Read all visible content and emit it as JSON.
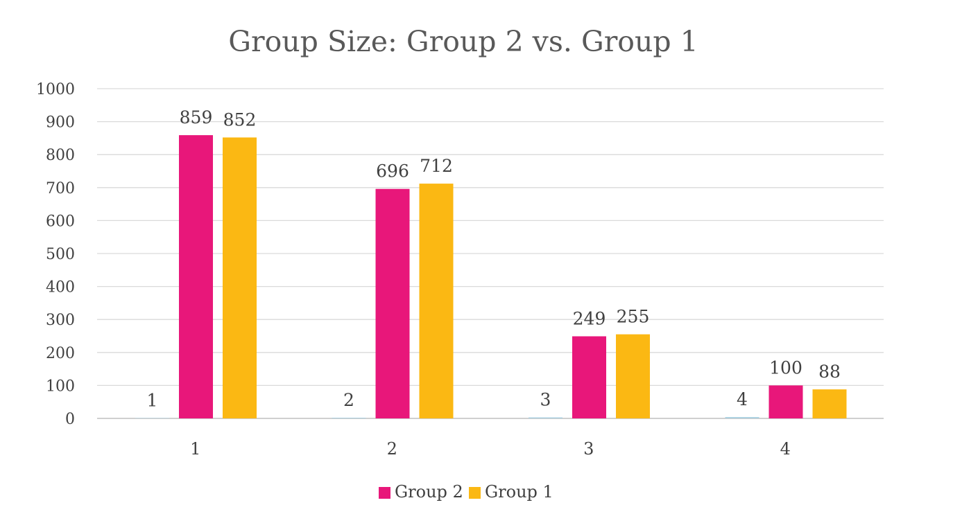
{
  "chart_data": {
    "type": "bar",
    "title": "Group Size: Group 2 vs. Group 1",
    "xlabel": "",
    "ylabel": "",
    "categories": [
      "1",
      "2",
      "3",
      "4"
    ],
    "ylim": [
      0,
      1000
    ],
    "yticks": [
      "0",
      "100",
      "200",
      "300",
      "400",
      "500",
      "600",
      "700",
      "800",
      "900",
      "1000"
    ],
    "grid": true,
    "legend_position": "bottom",
    "series": [
      {
        "key": "index",
        "values": [
          1,
          2,
          3,
          4
        ],
        "labels": [
          "1",
          "2",
          "3",
          "4"
        ],
        "color": "#a9cfe0",
        "in_legend": false
      },
      {
        "key": "group2",
        "name": "Group 2",
        "values": [
          859,
          696,
          249,
          100
        ],
        "labels": [
          "859",
          "696",
          "249",
          "100"
        ],
        "color": "#e8177a",
        "in_legend": true
      },
      {
        "key": "group1",
        "name": "Group 1",
        "values": [
          852,
          712,
          255,
          88
        ],
        "labels": [
          "852",
          "712",
          "255",
          "88"
        ],
        "color": "#fbb813",
        "in_legend": true
      }
    ]
  },
  "colors": {
    "text": "#404040",
    "gridline": "#d9d9d9",
    "axis": "#bfbfbf"
  }
}
